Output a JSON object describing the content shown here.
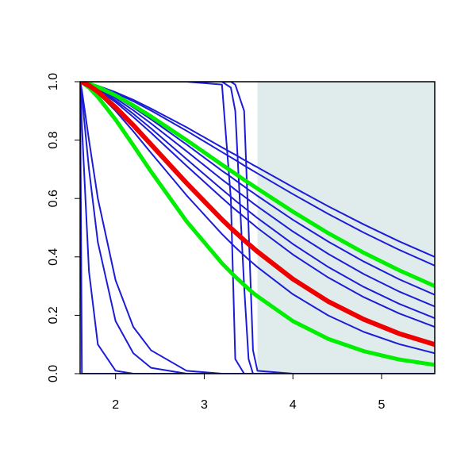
{
  "chart_data": {
    "type": "line",
    "x": [
      1.6,
      1.62,
      1.7,
      1.8,
      2.0,
      2.2,
      2.4,
      2.8,
      3.2,
      3.3,
      3.35,
      3.45,
      3.5,
      3.55,
      3.6,
      4.0,
      4.4,
      4.8,
      5.2,
      5.6
    ],
    "xlim": [
      1.6,
      5.6
    ],
    "xticks": [
      2,
      3,
      4,
      5
    ],
    "ylim": [
      0,
      1
    ],
    "yticks": [
      {
        "value": 0,
        "label": "0.0"
      },
      0.2,
      0.4,
      0.6,
      0.8,
      {
        "value": 1,
        "label": "1.0"
      }
    ],
    "grid": false,
    "highlight_xrange": [
      3.6,
      5.6
    ],
    "highlight_color": "#e0ecec",
    "series": [
      {
        "color": "#1c1cd6",
        "width": 2,
        "values": [
          1,
          0,
          0,
          0,
          0,
          0,
          0,
          0,
          0,
          0,
          0,
          0,
          0,
          0,
          0,
          0,
          0,
          0,
          0,
          0
        ]
      },
      {
        "color": "#1c1cd6",
        "width": 2,
        "values": [
          1,
          0.85,
          0.35,
          0.1,
          0.01,
          0,
          0,
          0,
          0,
          0,
          0,
          0,
          0,
          0,
          0,
          0,
          0,
          0,
          0,
          0
        ]
      },
      {
        "color": "#1c1cd6",
        "width": 2,
        "values": [
          1,
          0.95,
          0.7,
          0.45,
          0.18,
          0.07,
          0.02,
          0,
          0,
          0,
          0,
          0,
          0,
          0,
          0,
          0,
          0,
          0,
          0,
          0
        ]
      },
      {
        "color": "#1c1cd6",
        "width": 2,
        "values": [
          1,
          0.97,
          0.8,
          0.6,
          0.32,
          0.16,
          0.08,
          0.01,
          0,
          0,
          0,
          0,
          0,
          0,
          0,
          0,
          0,
          0,
          0,
          0
        ]
      },
      {
        "color": "#1c1cd6",
        "width": 2,
        "values": [
          1,
          1,
          1,
          1,
          1,
          1,
          1,
          1,
          0.99,
          0.6,
          0.05,
          0,
          0,
          0,
          0,
          0,
          0,
          0,
          0,
          0
        ]
      },
      {
        "color": "#1c1cd6",
        "width": 2,
        "values": [
          1,
          1,
          1,
          1,
          1,
          1,
          1,
          1,
          1,
          0.98,
          0.9,
          0.3,
          0.05,
          0,
          0,
          0,
          0,
          0,
          0,
          0
        ]
      },
      {
        "color": "#1c1cd6",
        "width": 2,
        "values": [
          1,
          1,
          1,
          1,
          1,
          1,
          1,
          1,
          1,
          1,
          0.99,
          0.9,
          0.5,
          0.08,
          0.01,
          0,
          0,
          0,
          0,
          0
        ]
      },
      {
        "color": "#1c1cd6",
        "width": 2,
        "values": [
          1,
          0.999,
          0.995,
          0.986,
          0.964,
          0.938,
          0.908,
          0.844,
          0.775,
          0.758,
          0.75,
          0.732,
          0.724,
          0.715,
          0.707,
          0.639,
          0.573,
          0.511,
          0.453,
          0.4
        ]
      },
      {
        "color": "#1c1cd6",
        "width": 2,
        "values": [
          1,
          0.999,
          0.994,
          0.985,
          0.961,
          0.933,
          0.901,
          0.832,
          0.759,
          0.741,
          0.732,
          0.713,
          0.704,
          0.695,
          0.686,
          0.615,
          0.547,
          0.483,
          0.424,
          0.37
        ]
      },
      {
        "color": "#1c1cd6",
        "width": 2,
        "values": [
          1,
          0.999,
          0.993,
          0.98,
          0.949,
          0.912,
          0.871,
          0.785,
          0.695,
          0.674,
          0.663,
          0.641,
          0.63,
          0.62,
          0.609,
          0.527,
          0.452,
          0.384,
          0.323,
          0.27
        ]
      },
      {
        "color": "#1c1cd6",
        "width": 2,
        "values": [
          1,
          0.999,
          0.992,
          0.978,
          0.943,
          0.902,
          0.857,
          0.762,
          0.665,
          0.642,
          0.63,
          0.607,
          0.596,
          0.584,
          0.573,
          0.487,
          0.41,
          0.341,
          0.281,
          0.23
        ]
      },
      {
        "color": "#1c1cd6",
        "width": 2,
        "values": [
          1,
          0.999,
          0.991,
          0.975,
          0.936,
          0.89,
          0.84,
          0.735,
          0.631,
          0.606,
          0.593,
          0.569,
          0.557,
          0.545,
          0.533,
          0.444,
          0.365,
          0.297,
          0.239,
          0.19
        ]
      },
      {
        "color": "#1c1cd6",
        "width": 2,
        "values": [
          1,
          0.999,
          0.99,
          0.973,
          0.93,
          0.879,
          0.825,
          0.712,
          0.602,
          0.575,
          0.562,
          0.537,
          0.524,
          0.512,
          0.499,
          0.408,
          0.329,
          0.262,
          0.206,
          0.16
        ]
      },
      {
        "color": "#1c1cd6",
        "width": 2,
        "values": [
          1,
          0.998,
          0.985,
          0.961,
          0.9,
          0.83,
          0.756,
          0.611,
          0.478,
          0.448,
          0.433,
          0.405,
          0.391,
          0.378,
          0.365,
          0.272,
          0.199,
          0.143,
          0.101,
          0.07
        ]
      },
      {
        "color": "#00ee00",
        "width": 5,
        "values": [
          1,
          0.999,
          0.993,
          0.982,
          0.953,
          0.919,
          0.881,
          0.8,
          0.716,
          0.695,
          0.685,
          0.664,
          0.654,
          0.644,
          0.634,
          0.555,
          0.481,
          0.414,
          0.354,
          0.3
        ]
      },
      {
        "color": "#00ee00",
        "width": 5,
        "values": [
          1,
          0.998,
          0.98,
          0.948,
          0.87,
          0.782,
          0.692,
          0.522,
          0.378,
          0.347,
          0.332,
          0.304,
          0.29,
          0.277,
          0.265,
          0.18,
          0.119,
          0.077,
          0.0485,
          0.03
        ]
      },
      {
        "color": "#ee0000",
        "width": 6,
        "values": [
          1,
          0.999,
          0.987,
          0.966,
          0.912,
          0.851,
          0.785,
          0.653,
          0.528,
          0.499,
          0.485,
          0.457,
          0.444,
          0.431,
          0.418,
          0.324,
          0.247,
          0.186,
          0.137,
          0.1
        ]
      }
    ]
  }
}
